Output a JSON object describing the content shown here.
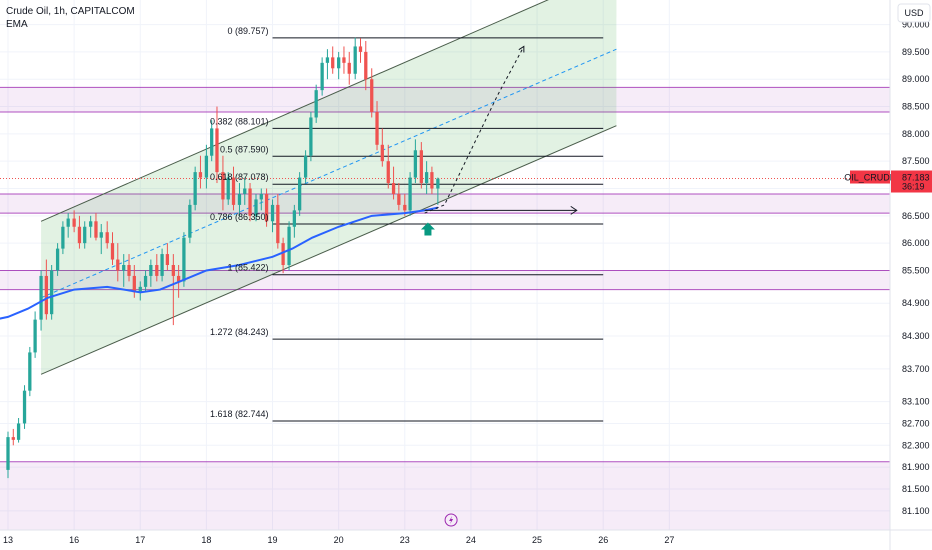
{
  "legend": {
    "title": "Crude Oil, 1h, CAPITALCOM",
    "indicator": "EMA"
  },
  "currency_button": {
    "label": "USD"
  },
  "price_tag": {
    "symbol": "OIL_CRUDE",
    "price": "87.183",
    "countdown": "36:19",
    "color": "#f23645"
  },
  "colors": {
    "up": "#26a69a",
    "down": "#ef5350",
    "ema": "#2962ff",
    "zone": "#9c27b0",
    "channel_fill": "#4caf50",
    "arrow": "#089981"
  },
  "chart_data": {
    "type": "candlestick",
    "title": "Crude Oil, 1h, CAPITALCOM",
    "ylim": [
      80.75,
      90.45
    ],
    "xlim": [
      13.0,
      28.0
    ],
    "y_ticks": [
      "90.000",
      "89.500",
      "89.000",
      "88.500",
      "88.000",
      "87.500",
      "87.000",
      "86.500",
      "86.000",
      "85.500",
      "84.900",
      "84.300",
      "83.700",
      "83.100",
      "82.700",
      "82.300",
      "81.900",
      "81.500",
      "81.100"
    ],
    "x_ticks": [
      {
        "label": "13",
        "x": 13.0
      },
      {
        "label": "16",
        "x": 14.0
      },
      {
        "label": "17",
        "x": 15.0
      },
      {
        "label": "18",
        "x": 16.0
      },
      {
        "label": "19",
        "x": 17.0
      },
      {
        "label": "20",
        "x": 18.0
      },
      {
        "label": "23",
        "x": 19.0
      },
      {
        "label": "24",
        "x": 20.0
      },
      {
        "label": "25",
        "x": 21.0
      },
      {
        "label": "26",
        "x": 22.0
      },
      {
        "label": "27",
        "x": 23.0
      }
    ],
    "candles": [
      [
        13.0,
        81.85,
        82.55,
        81.7,
        82.45
      ],
      [
        13.08,
        82.45,
        82.6,
        82.3,
        82.4
      ],
      [
        13.16,
        82.4,
        82.8,
        82.35,
        82.7
      ],
      [
        13.25,
        82.7,
        83.4,
        82.6,
        83.3
      ],
      [
        13.33,
        83.3,
        84.1,
        83.2,
        84.0
      ],
      [
        13.41,
        84.0,
        84.75,
        83.9,
        84.6
      ],
      [
        13.5,
        84.6,
        85.5,
        84.4,
        85.4
      ],
      [
        13.58,
        85.4,
        85.7,
        84.6,
        84.7
      ],
      [
        13.66,
        84.7,
        85.6,
        84.6,
        85.5
      ],
      [
        13.75,
        85.5,
        86.0,
        85.4,
        85.9
      ],
      [
        13.83,
        85.9,
        86.4,
        85.8,
        86.3
      ],
      [
        13.91,
        86.3,
        86.55,
        86.1,
        86.45
      ],
      [
        14.0,
        86.45,
        86.6,
        86.2,
        86.3
      ],
      [
        14.08,
        86.3,
        86.5,
        85.9,
        86.0
      ],
      [
        14.16,
        86.0,
        86.4,
        85.9,
        86.3
      ],
      [
        14.25,
        86.3,
        86.5,
        86.1,
        86.4
      ],
      [
        14.33,
        86.4,
        86.55,
        86.05,
        86.1
      ],
      [
        14.41,
        86.1,
        86.35,
        85.8,
        86.2
      ],
      [
        14.5,
        86.2,
        86.4,
        85.9,
        86.0
      ],
      [
        14.58,
        86.0,
        86.2,
        85.6,
        85.7
      ],
      [
        14.66,
        85.7,
        86.0,
        85.3,
        85.5
      ],
      [
        14.75,
        85.5,
        85.8,
        85.2,
        85.6
      ],
      [
        14.83,
        85.6,
        85.8,
        85.3,
        85.4
      ],
      [
        14.91,
        85.4,
        85.6,
        85.0,
        85.1
      ],
      [
        15.0,
        85.1,
        85.3,
        84.95,
        85.2
      ],
      [
        15.08,
        85.2,
        85.5,
        85.1,
        85.4
      ],
      [
        15.16,
        85.4,
        85.7,
        85.2,
        85.6
      ],
      [
        15.25,
        85.6,
        85.8,
        85.3,
        85.4
      ],
      [
        15.33,
        85.4,
        85.9,
        85.3,
        85.8
      ],
      [
        15.41,
        85.8,
        86.0,
        85.5,
        85.6
      ],
      [
        15.5,
        85.6,
        85.8,
        84.5,
        85.4
      ],
      [
        15.58,
        85.4,
        85.6,
        85.0,
        85.3
      ],
      [
        15.66,
        85.3,
        86.2,
        85.2,
        86.1
      ],
      [
        15.75,
        86.1,
        86.8,
        86.0,
        86.7
      ],
      [
        15.83,
        86.7,
        87.4,
        86.6,
        87.3
      ],
      [
        15.91,
        87.3,
        87.6,
        87.0,
        87.2
      ],
      [
        16.0,
        87.2,
        87.8,
        87.0,
        87.6
      ],
      [
        16.08,
        87.6,
        88.25,
        87.5,
        88.1
      ],
      [
        16.16,
        88.1,
        88.5,
        87.1,
        87.3
      ],
      [
        16.25,
        87.3,
        87.6,
        86.6,
        86.8
      ],
      [
        16.33,
        86.8,
        87.3,
        86.7,
        87.2
      ],
      [
        16.41,
        87.2,
        87.4,
        86.6,
        86.7
      ],
      [
        16.5,
        86.7,
        87.1,
        86.5,
        86.9
      ],
      [
        16.58,
        86.9,
        87.2,
        86.7,
        87.0
      ],
      [
        16.66,
        87.0,
        87.1,
        86.4,
        86.5
      ],
      [
        16.75,
        86.5,
        86.9,
        86.4,
        86.8
      ],
      [
        16.83,
        86.8,
        87.0,
        86.6,
        86.9
      ],
      [
        16.91,
        86.9,
        87.0,
        86.3,
        86.4
      ],
      [
        17.0,
        86.4,
        86.8,
        86.2,
        86.7
      ],
      [
        17.08,
        86.7,
        86.9,
        85.9,
        86.0
      ],
      [
        17.16,
        86.0,
        86.1,
        85.45,
        85.6
      ],
      [
        17.25,
        85.6,
        86.4,
        85.5,
        86.3
      ],
      [
        17.33,
        86.3,
        86.7,
        86.1,
        86.6
      ],
      [
        17.41,
        86.6,
        87.3,
        86.5,
        87.2
      ],
      [
        17.5,
        87.2,
        87.7,
        87.1,
        87.6
      ],
      [
        17.58,
        87.6,
        88.4,
        87.5,
        88.3
      ],
      [
        17.66,
        88.3,
        88.9,
        88.2,
        88.8
      ],
      [
        17.75,
        88.8,
        89.4,
        88.7,
        89.3
      ],
      [
        17.83,
        89.3,
        89.55,
        89.0,
        89.4
      ],
      [
        17.91,
        89.4,
        89.6,
        89.1,
        89.2
      ],
      [
        18.0,
        89.2,
        89.5,
        89.0,
        89.4
      ],
      [
        18.08,
        89.4,
        89.6,
        89.1,
        89.3
      ],
      [
        18.16,
        89.3,
        89.5,
        88.9,
        89.1
      ],
      [
        18.25,
        89.1,
        89.76,
        89.0,
        89.6
      ],
      [
        18.33,
        89.6,
        89.75,
        89.3,
        89.5
      ],
      [
        18.41,
        89.5,
        89.7,
        88.8,
        89.0
      ],
      [
        18.5,
        89.0,
        89.2,
        88.3,
        88.4
      ],
      [
        18.58,
        88.4,
        88.6,
        87.7,
        87.8
      ],
      [
        18.66,
        87.8,
        88.1,
        87.4,
        87.5
      ],
      [
        18.75,
        87.5,
        87.8,
        87.0,
        87.1
      ],
      [
        18.83,
        87.1,
        87.4,
        86.8,
        86.9
      ],
      [
        18.91,
        86.9,
        87.1,
        86.6,
        86.7
      ],
      [
        19.0,
        86.7,
        86.9,
        86.5,
        86.6
      ],
      [
        19.08,
        86.6,
        87.3,
        86.5,
        87.2
      ],
      [
        19.16,
        87.2,
        87.9,
        87.1,
        87.7
      ],
      [
        19.25,
        87.7,
        87.85,
        87.0,
        87.1
      ],
      [
        19.33,
        87.1,
        87.5,
        86.9,
        87.3
      ],
      [
        19.41,
        87.3,
        87.4,
        86.9,
        87.0
      ],
      [
        19.5,
        87.0,
        87.2,
        86.7,
        87.18
      ]
    ],
    "ema": [
      [
        12.6,
        84.7
      ],
      [
        12.8,
        84.6
      ],
      [
        13.0,
        84.65
      ],
      [
        13.3,
        84.8
      ],
      [
        13.6,
        85.0
      ],
      [
        14.0,
        85.15
      ],
      [
        14.5,
        85.2
      ],
      [
        15.0,
        85.1
      ],
      [
        15.3,
        85.15
      ],
      [
        15.6,
        85.3
      ],
      [
        16.0,
        85.5
      ],
      [
        16.5,
        85.6
      ],
      [
        17.0,
        85.75
      ],
      [
        17.3,
        85.9
      ],
      [
        17.6,
        86.1
      ],
      [
        18.0,
        86.3
      ],
      [
        18.5,
        86.5
      ],
      [
        19.0,
        86.55
      ],
      [
        19.3,
        86.6
      ],
      [
        19.5,
        86.65
      ]
    ],
    "fibonacci": [
      {
        "label": "0 (89.757)",
        "price": 89.757
      },
      {
        "label": "0.382 (88.101)",
        "price": 88.101
      },
      {
        "label": "0.5 (87.590)",
        "price": 87.59
      },
      {
        "label": "0.618 (87.078)",
        "price": 87.078
      },
      {
        "label": "0.786 (86.350)",
        "price": 86.35
      },
      {
        "label": "1 (85.422)",
        "price": 85.422
      },
      {
        "label": "1.272 (84.243)",
        "price": 84.243
      },
      {
        "label": "1.618 (82.744)",
        "price": 82.744
      }
    ],
    "fib_x_range": [
      17.0,
      22.0
    ],
    "zones": [
      {
        "y1": 88.85,
        "y2": 88.4
      },
      {
        "y1": 86.9,
        "y2": 86.55
      },
      {
        "y1": 85.5,
        "y2": 85.15
      },
      {
        "y1": 82.0,
        "y2": 80.75
      }
    ],
    "channel": {
      "x_start": 13.5,
      "x_end": 22.2,
      "upper": [
        86.4,
        91.0
      ],
      "lower": [
        83.6,
        88.15
      ],
      "mid": [
        85.0,
        89.55
      ]
    },
    "projection": [
      [
        19.3,
        86.55
      ],
      [
        19.6,
        86.7
      ],
      [
        20.0,
        87.7
      ],
      [
        20.4,
        88.7
      ],
      [
        20.8,
        89.6
      ]
    ],
    "target_arrow": {
      "x1": 19.3,
      "x2": 21.6,
      "price": 86.6
    },
    "buy_arrow": {
      "x": 19.35,
      "price": 86.25
    },
    "current_price": 87.183
  }
}
